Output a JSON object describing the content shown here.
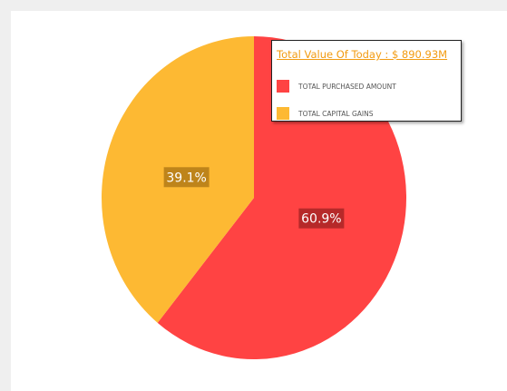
{
  "chart_data": {
    "type": "pie",
    "title": "",
    "slices": [
      {
        "label": "TOTAL PURCHASED AMOUNT",
        "value": 60.9,
        "display": "60.9%",
        "color": "#ff4343"
      },
      {
        "label": "TOTAL CAPITAL GAINS",
        "value": 39.1,
        "display": "39.1%",
        "color": "#fdb933"
      }
    ],
    "legend": {
      "title": "Total Value Of Today : $ 890.93M",
      "placement": "top-right"
    }
  }
}
